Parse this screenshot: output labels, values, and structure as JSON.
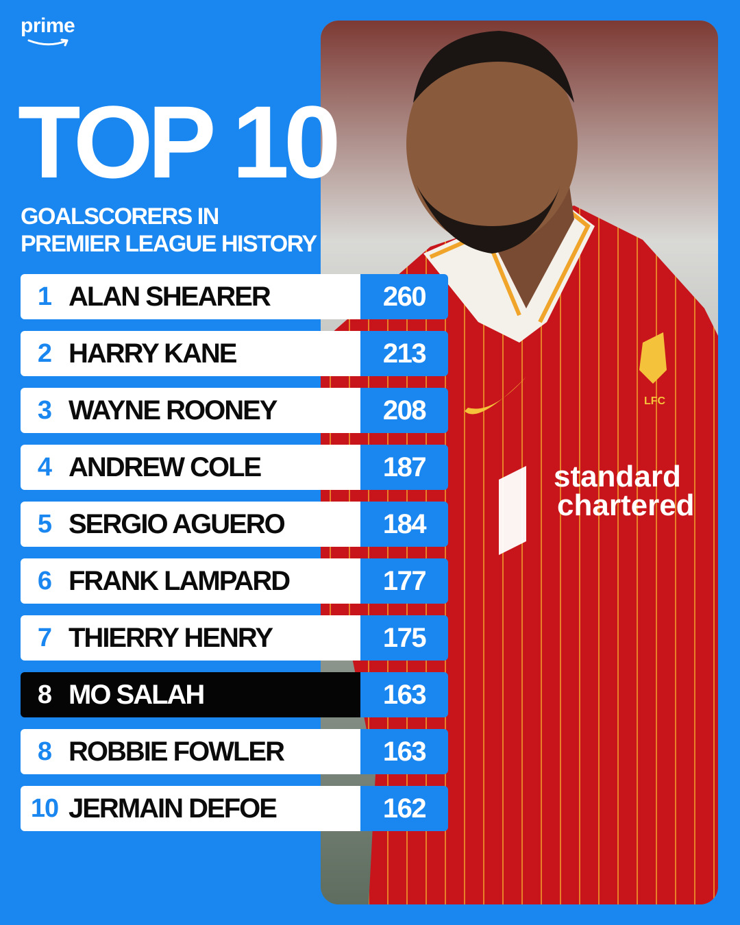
{
  "brand": {
    "logo_text": "prime"
  },
  "header": {
    "title": "TOP 10",
    "subtitle_line1": "GOALSCORERS IN",
    "subtitle_line2": "PREMIER LEAGUE HISTORY"
  },
  "photo": {
    "subject": "footballer in red Liverpool kit",
    "crest_text": "LFC",
    "sponsor_line1": "standard",
    "sponsor_line2": "chartered"
  },
  "colors": {
    "background": "#1a86f0",
    "row_background": "#ffffff",
    "highlight_row_background": "#050505",
    "goals_background": "#1a86f0",
    "kit_red": "#c8151b"
  },
  "leaderboard": [
    {
      "rank": "1",
      "name": "ALAN SHEARER",
      "goals": "260",
      "highlight": false
    },
    {
      "rank": "2",
      "name": "HARRY KANE",
      "goals": "213",
      "highlight": false
    },
    {
      "rank": "3",
      "name": "WAYNE ROONEY",
      "goals": "208",
      "highlight": false
    },
    {
      "rank": "4",
      "name": "ANDREW COLE",
      "goals": "187",
      "highlight": false
    },
    {
      "rank": "5",
      "name": "SERGIO AGUERO",
      "goals": "184",
      "highlight": false
    },
    {
      "rank": "6",
      "name": "FRANK LAMPARD",
      "goals": "177",
      "highlight": false
    },
    {
      "rank": "7",
      "name": "THIERRY HENRY",
      "goals": "175",
      "highlight": false
    },
    {
      "rank": "8",
      "name": "MO SALAH",
      "goals": "163",
      "highlight": true
    },
    {
      "rank": "8",
      "name": "ROBBIE FOWLER",
      "goals": "163",
      "highlight": false
    },
    {
      "rank": "10",
      "name": "JERMAIN DEFOE",
      "goals": "162",
      "highlight": false
    }
  ]
}
